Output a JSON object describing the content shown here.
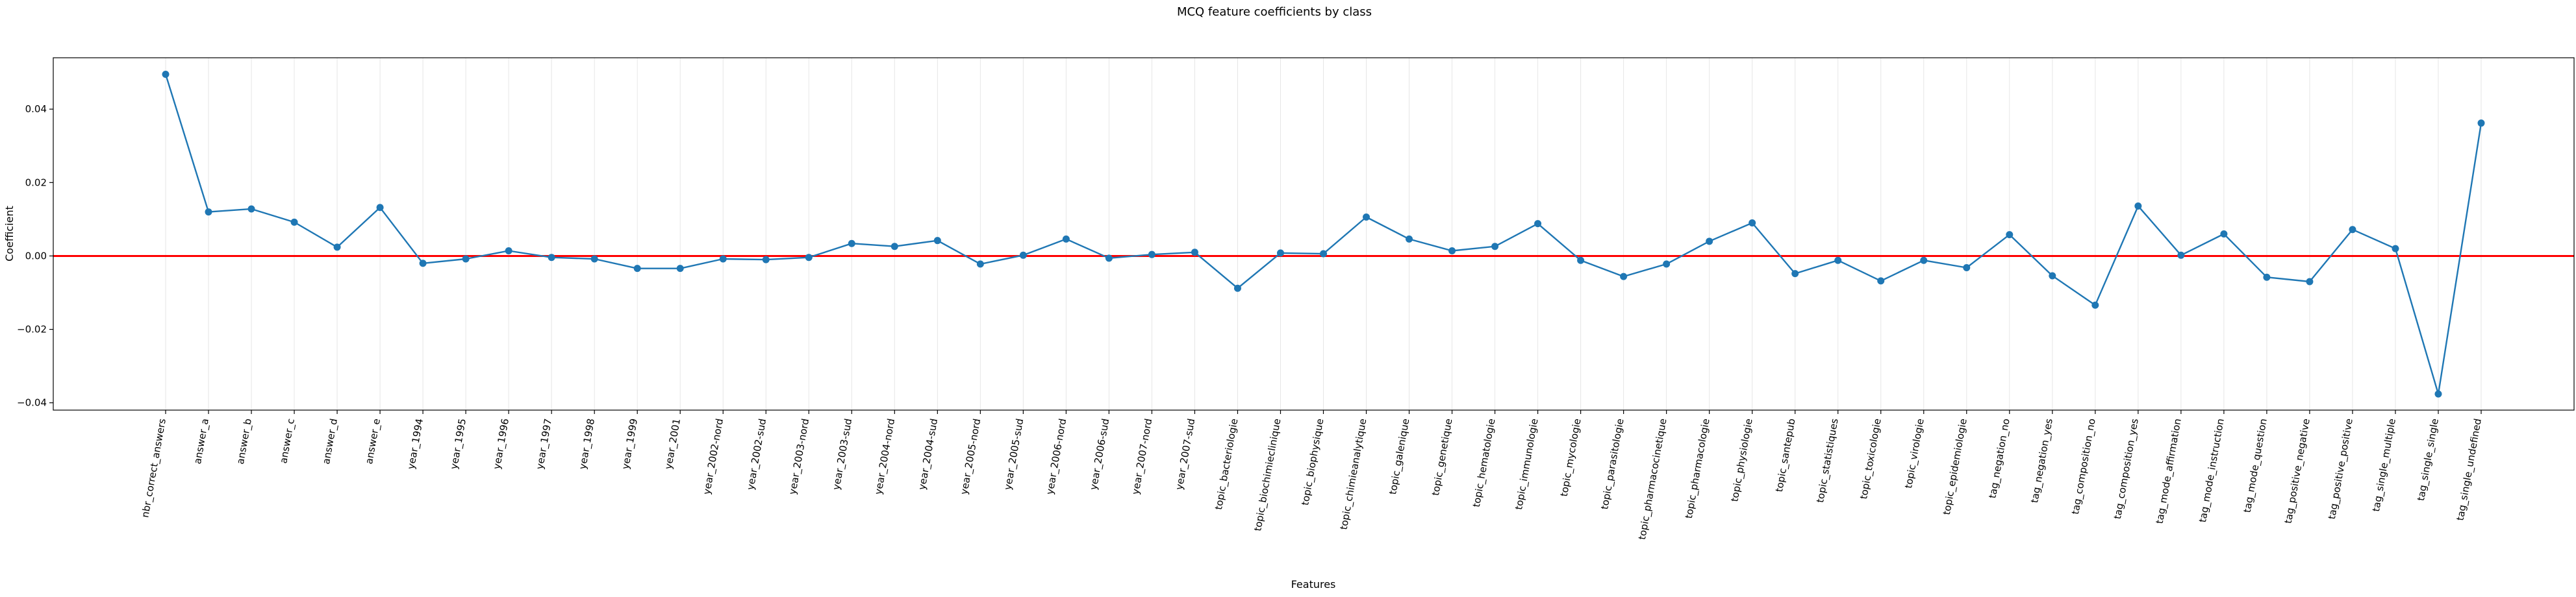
{
  "chart_data": {
    "type": "line",
    "title": "MCQ feature coefficients by class",
    "xlabel": "Features",
    "ylabel": "Coefficient",
    "ylim": [
      -0.042,
      0.054
    ],
    "y_ticks": [
      -0.04,
      -0.02,
      0.0,
      0.02,
      0.04
    ],
    "y_tick_labels": [
      "−0.04",
      "−0.02",
      "0.00",
      "0.02",
      "0.04"
    ],
    "grid": "vertical",
    "reference_line": {
      "y": 0.0,
      "color": "#ff0000"
    },
    "line_color": "#1f77b4",
    "categories": [
      "nbr_correct_answers",
      "answer_a",
      "answer_b",
      "answer_c",
      "answer_d",
      "answer_e",
      "year_1994",
      "year_1995",
      "year_1996",
      "year_1997",
      "year_1998",
      "year_1999",
      "year_2001",
      "year_2002-nord",
      "year_2002-sud",
      "year_2003-nord",
      "year_2003-sud",
      "year_2004-nord",
      "year_2004-sud",
      "year_2005-nord",
      "year_2005-sud",
      "year_2006-nord",
      "year_2006-sud",
      "year_2007-nord",
      "year_2007-sud",
      "topic_bacteriologie",
      "topic_biochimieclinique",
      "topic_biophysique",
      "topic_chimieanalytique",
      "topic_galenique",
      "topic_genetique",
      "topic_hematologie",
      "topic_immunologie",
      "topic_mycologie",
      "topic_parasitologie",
      "topic_pharmacocinetique",
      "topic_pharmacologie",
      "topic_physiologie",
      "topic_santepub",
      "topic_statistiques",
      "topic_toxicologie",
      "topic_virologie",
      "topic_epidemiologie",
      "tag_negation_no",
      "tag_negation_yes",
      "tag_composition_no",
      "tag_composition_yes",
      "tag_mode_affirmation",
      "tag_mode_instruction",
      "tag_mode_question",
      "tag_positive_negative",
      "tag_positive_positive",
      "tag_single_multiple",
      "tag_single_single",
      "tag_single_undefined"
    ],
    "series": [
      {
        "values": [
          0.0495,
          0.012,
          0.0128,
          0.0092,
          0.0024,
          0.0132,
          -0.002,
          -0.0008,
          0.0014,
          -0.0004,
          -0.0008,
          -0.0034,
          -0.0034,
          -0.0008,
          -0.001,
          -0.0004,
          0.0034,
          0.0026,
          0.0042,
          -0.0022,
          0.0002,
          0.0046,
          -0.0006,
          0.0004,
          0.001,
          -0.0088,
          0.0008,
          0.0006,
          0.0106,
          0.0046,
          0.0014,
          0.0026,
          0.0088,
          -0.0012,
          -0.0056,
          -0.0022,
          0.004,
          0.009,
          -0.0048,
          -0.0012,
          -0.0068,
          -0.0012,
          -0.0032,
          0.0058,
          -0.0054,
          -0.0134,
          0.0136,
          0.0002,
          0.006,
          -0.0058,
          -0.007,
          0.0072,
          0.002,
          -0.0376,
          0.0362
        ]
      }
    ]
  }
}
